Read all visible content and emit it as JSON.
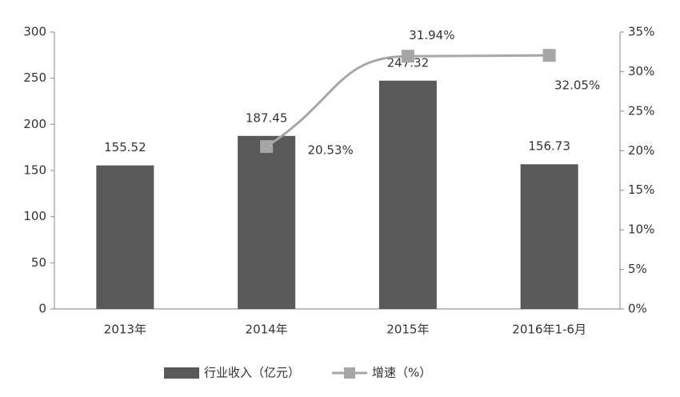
{
  "chart_data": {
    "type": "bar+line",
    "categories": [
      "2013年",
      "2014年",
      "2015年",
      "2016年1-6月"
    ],
    "series": [
      {
        "name": "行业收入（亿元）",
        "type": "bar",
        "color": "#595959",
        "values": [
          155.52,
          187.45,
          247.32,
          156.73
        ]
      },
      {
        "name": "增速（%）",
        "type": "line",
        "axis": "y2",
        "color": "#a6a6a6",
        "values": [
          null,
          20.53,
          31.94,
          32.05
        ],
        "value_labels": [
          null,
          "20.53%",
          "31.94%",
          "32.05%"
        ]
      }
    ],
    "ylim": [
      0,
      300
    ],
    "yticks": [
      0,
      50,
      100,
      150,
      200,
      250,
      300
    ],
    "y2lim": [
      0,
      35
    ],
    "y2ticks": [
      {
        "value": 0,
        "label": "0%"
      },
      {
        "value": 5,
        "label": "5%"
      },
      {
        "value": 10,
        "label": "10%"
      },
      {
        "value": 15,
        "label": "15%"
      },
      {
        "value": 20,
        "label": "20%"
      },
      {
        "value": 25,
        "label": "25%"
      },
      {
        "value": 30,
        "label": "30%"
      },
      {
        "value": 35,
        "label": "35%"
      }
    ],
    "grid": false,
    "legend": "bottom"
  }
}
